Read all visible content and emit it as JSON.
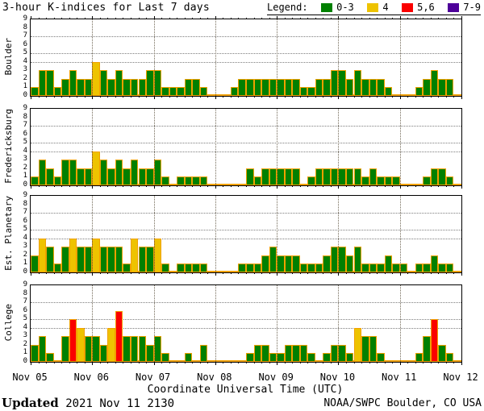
{
  "title": "3-hour K-indices for Last 7 days",
  "legend": {
    "label": "Legend:",
    "items": [
      {
        "label": "0-3",
        "color": "#018001",
        "min": 0,
        "max": 3
      },
      {
        "label": "4",
        "color": "#eec300",
        "min": 4,
        "max": 4
      },
      {
        "label": "5,6",
        "color": "#fa0000",
        "min": 5,
        "max": 6
      },
      {
        "label": "7-9",
        "color": "#4d0099",
        "min": 7,
        "max": 9
      }
    ]
  },
  "chart_data": {
    "type": "bar",
    "interval_hours": 3,
    "bars_per_day": 8,
    "ylim": [
      0,
      9
    ],
    "y_ticks": [
      0,
      1,
      2,
      3,
      4,
      5,
      6,
      7,
      8,
      9
    ],
    "gridlines_y": [
      4,
      5,
      7
    ],
    "grid": "dotted",
    "categories": [
      "Nov 05",
      "Nov 06",
      "Nov 07",
      "Nov 08",
      "Nov 09",
      "Nov 10",
      "Nov 11",
      "Nov 12"
    ],
    "xlabel": "Coordinate Universal Time (UTC)",
    "series": [
      {
        "name": "Boulder",
        "values": [
          1,
          3,
          3,
          1,
          2,
          3,
          2,
          2,
          4,
          3,
          2,
          3,
          2,
          2,
          2,
          3,
          3,
          1,
          1,
          1,
          2,
          2,
          1,
          0,
          0,
          0,
          1,
          2,
          2,
          2,
          2,
          2,
          2,
          2,
          2,
          1,
          1,
          2,
          2,
          3,
          3,
          2,
          3,
          2,
          2,
          2,
          1,
          0,
          0,
          0,
          1,
          2,
          3,
          2,
          2,
          0
        ]
      },
      {
        "name": "Fredericksburg",
        "values": [
          1,
          3,
          2,
          1,
          3,
          3,
          2,
          2,
          4,
          3,
          2,
          3,
          2,
          3,
          2,
          2,
          3,
          1,
          0,
          1,
          1,
          1,
          1,
          0,
          0,
          0,
          0,
          0,
          2,
          1,
          2,
          2,
          2,
          2,
          2,
          0,
          1,
          2,
          2,
          2,
          2,
          2,
          2,
          1,
          2,
          1,
          1,
          1,
          0,
          0,
          0,
          1,
          2,
          2,
          1,
          0
        ]
      },
      {
        "name": "Est. Planetary",
        "values": [
          2,
          4,
          3,
          1,
          3,
          4,
          3,
          3,
          4,
          3,
          3,
          3,
          1,
          4,
          3,
          3,
          4,
          1,
          0,
          1,
          1,
          1,
          1,
          0,
          0,
          0,
          0,
          1,
          1,
          1,
          2,
          3,
          2,
          2,
          2,
          1,
          1,
          1,
          2,
          3,
          3,
          2,
          3,
          1,
          1,
          1,
          2,
          1,
          1,
          0,
          1,
          1,
          2,
          1,
          1,
          0
        ]
      },
      {
        "name": "College",
        "values": [
          2,
          3,
          1,
          0,
          3,
          5,
          4,
          3,
          3,
          2,
          4,
          6,
          3,
          3,
          3,
          2,
          3,
          1,
          0,
          0,
          1,
          0,
          2,
          0,
          0,
          0,
          0,
          0,
          1,
          2,
          2,
          1,
          1,
          2,
          2,
          2,
          1,
          0,
          1,
          2,
          2,
          1,
          4,
          3,
          3,
          1,
          0,
          0,
          0,
          0,
          1,
          3,
          5,
          2,
          1,
          0
        ]
      }
    ]
  },
  "footer": {
    "updated_label": "Updated",
    "updated_value": "2021 Nov 11 2130",
    "credit": "NOAA/SWPC Boulder, CO USA"
  },
  "colors": {
    "bar_border": "#f0a000",
    "grid": "#7d7d7d",
    "frame": "#000000",
    "background": "#ffffff"
  }
}
